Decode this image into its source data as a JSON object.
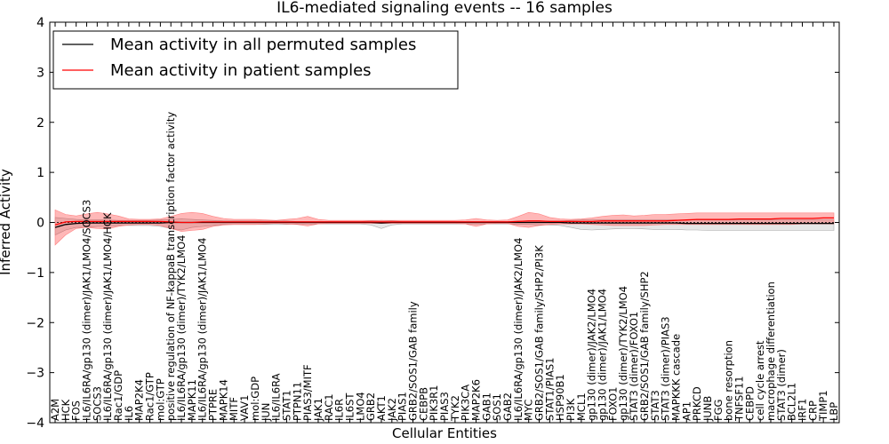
{
  "chart_data": {
    "type": "line",
    "title": "IL6-mediated signaling events -- 16 samples",
    "xlabel": "Cellular Entities",
    "ylabel": "Inferred Activity",
    "ylim": [
      -4,
      4
    ],
    "yticks": [
      -4,
      -3,
      -2,
      -1,
      0,
      1,
      2,
      3,
      4
    ],
    "grid": false,
    "legend_position": "top-left",
    "categories": [
      "A2M",
      "HCK",
      "FOS",
      "IL6/IL6RA/gp130 (dimer)/JAK1/LMO4/SOCS3",
      "SOCS3",
      "IL6/IL6RA/gp130 (dimer)/JAK1/LMO4/HCK",
      "Rac1/GDP",
      "IL6",
      "MAP2K4",
      "Rac1/GTP",
      "mol:GTP",
      "positive regulation of NF-kappaB transcription factor activity",
      "IL6/IL6RA/gp130 (dimer)/TYK2/LMO4",
      "MAPK11",
      "IL6/IL6RA/gp130 (dimer)/JAK1/LMO4",
      "PTPRE",
      "MAPK14",
      "MITF",
      "VAV1",
      "mol:GDP",
      "JUN",
      "IL6/IL6RA",
      "STAT1",
      "PTPN11",
      "PIAS3/MITF",
      "JAK1",
      "RAC1",
      "IL6R",
      "IL6ST",
      "LMO4",
      "GRB2",
      "AKT1",
      "JAK2",
      "PIAS1",
      "GRB2/SOS1/GAB family",
      "CEBPB",
      "PIK3R1",
      "PIAS3",
      "TYK2",
      "PIK3CA",
      "MAP2K6",
      "GAB1",
      "SOS1",
      "GAB2",
      "IL6/IL6RA/gp130 (dimer)/JAK2/LMO4",
      "MYC",
      "GRB2/SOS1/GAB family/SHP2/PI3K",
      "STAT1/PIAS1",
      "HSP90B1",
      "PI3K",
      "MCL1",
      "gp130 (dimer)/JAK2/LMO4",
      "gp130 (dimer)/JAK1/LMO4",
      "FOXO1",
      "gp130 (dimer)/TYK2/LMO4",
      "STAT3 (dimer)/FOXO1",
      "GRB2/SOS1/GAB family/SHP2",
      "STAT3",
      "STAT3 (dimer)/PIAS3",
      "MAPKKK cascade",
      "AP1",
      "PRKCD",
      "JUNB",
      "FGG",
      "bone resorption",
      "TNFSF11",
      "CEBPD",
      "cell cycle arrest",
      "macrophage differentiation",
      "STAT3 (dimer)",
      "BCL2L1",
      "IRF1",
      "CRP",
      "TIMP1",
      "LBP"
    ],
    "series": [
      {
        "name": "Mean activity in all permuted samples",
        "color": "#000000",
        "values": [
          -0.1,
          -0.04,
          -0.02,
          -0.01,
          -0.01,
          -0.01,
          -0.01,
          -0.01,
          -0.01,
          -0.01,
          -0.01,
          0,
          0,
          0,
          0,
          0,
          0,
          0,
          0,
          0,
          0,
          0,
          0,
          0,
          0,
          0,
          0,
          0,
          0,
          0,
          0,
          -0.01,
          0,
          0,
          0,
          0,
          0,
          0,
          0,
          0,
          0,
          0,
          0,
          0,
          0,
          0,
          0,
          0,
          0,
          -0.01,
          -0.01,
          -0.01,
          -0.01,
          -0.01,
          -0.01,
          -0.01,
          -0.01,
          -0.01,
          -0.01,
          -0.01,
          -0.02,
          -0.02,
          -0.02,
          -0.02,
          -0.02,
          -0.02,
          -0.02,
          -0.02,
          -0.02,
          -0.02,
          -0.02,
          -0.02,
          -0.02,
          -0.02,
          -0.02
        ],
        "band": {
          "lower": [
            -0.25,
            -0.15,
            -0.1,
            -0.1,
            -0.08,
            -0.08,
            -0.06,
            -0.06,
            -0.06,
            -0.06,
            -0.08,
            -0.12,
            -0.15,
            -0.1,
            -0.08,
            -0.06,
            -0.04,
            -0.04,
            -0.04,
            -0.04,
            -0.04,
            -0.04,
            -0.04,
            -0.03,
            -0.03,
            -0.03,
            -0.03,
            -0.03,
            -0.03,
            -0.03,
            -0.05,
            -0.12,
            -0.05,
            -0.03,
            -0.03,
            -0.03,
            -0.03,
            -0.03,
            -0.03,
            -0.03,
            -0.03,
            -0.03,
            -0.03,
            -0.03,
            -0.04,
            -0.04,
            -0.05,
            -0.05,
            -0.06,
            -0.1,
            -0.14,
            -0.15,
            -0.14,
            -0.13,
            -0.12,
            -0.12,
            -0.13,
            -0.14,
            -0.14,
            -0.14,
            -0.15,
            -0.15,
            -0.16,
            -0.16,
            -0.16,
            -0.16,
            -0.16,
            -0.16,
            -0.16,
            -0.16,
            -0.16,
            -0.16,
            -0.16,
            -0.16,
            -0.16
          ],
          "upper": [
            0.1,
            0.08,
            0.06,
            0.05,
            0.05,
            0.05,
            0.04,
            0.04,
            0.04,
            0.04,
            0.05,
            0.06,
            0.07,
            0.06,
            0.05,
            0.04,
            0.03,
            0.03,
            0.03,
            0.03,
            0.03,
            0.03,
            0.03,
            0.02,
            0.02,
            0.02,
            0.02,
            0.02,
            0.02,
            0.02,
            0.03,
            0.04,
            0.03,
            0.02,
            0.02,
            0.02,
            0.02,
            0.02,
            0.02,
            0.02,
            0.02,
            0.02,
            0.02,
            0.02,
            0.03,
            0.03,
            0.03,
            0.03,
            0.03,
            0.04,
            0.05,
            0.05,
            0.05,
            0.05,
            0.05,
            0.05,
            0.05,
            0.05,
            0.05,
            0.05,
            0.05,
            0.05,
            0.05,
            0.05,
            0.05,
            0.05,
            0.05,
            0.05,
            0.05,
            0.05,
            0.05,
            0.05,
            0.05,
            0.05,
            0.05
          ]
        }
      },
      {
        "name": "Mean activity in patient samples",
        "color": "#ff0000",
        "values": [
          -0.05,
          0.01,
          0.02,
          0.02,
          0.02,
          0.02,
          0.02,
          0.02,
          0.02,
          0.02,
          0.02,
          0.01,
          0,
          0,
          0.01,
          0.01,
          0.01,
          0.01,
          0.01,
          0.01,
          0.01,
          0.01,
          0.01,
          0.01,
          0.01,
          0.01,
          0.01,
          0.01,
          0.01,
          0.01,
          0.01,
          0.01,
          0.01,
          0.01,
          0.01,
          0.01,
          0.01,
          0.01,
          0.01,
          0.01,
          0.01,
          0.01,
          0.01,
          0.01,
          0.02,
          0.03,
          0.03,
          0.02,
          0.02,
          0.02,
          0.02,
          0.02,
          0.03,
          0.03,
          0.03,
          0.03,
          0.03,
          0.03,
          0.03,
          0.04,
          0.05,
          0.06,
          0.06,
          0.06,
          0.06,
          0.07,
          0.07,
          0.07,
          0.07,
          0.08,
          0.08,
          0.08,
          0.08,
          0.09,
          0.09
        ],
        "band": {
          "lower": [
            -0.45,
            -0.25,
            -0.12,
            -0.1,
            -0.12,
            -0.13,
            -0.08,
            -0.05,
            -0.04,
            -0.04,
            -0.06,
            -0.12,
            -0.18,
            -0.16,
            -0.14,
            -0.08,
            -0.05,
            -0.04,
            -0.04,
            -0.04,
            -0.03,
            -0.02,
            -0.03,
            -0.04,
            -0.07,
            -0.03,
            -0.02,
            -0.02,
            -0.02,
            -0.02,
            -0.02,
            -0.02,
            -0.02,
            -0.02,
            -0.02,
            -0.02,
            -0.02,
            -0.02,
            -0.02,
            -0.03,
            -0.08,
            -0.03,
            -0.02,
            -0.02,
            -0.08,
            -0.1,
            -0.06,
            -0.04,
            -0.03,
            -0.03,
            -0.03,
            -0.04,
            -0.05,
            -0.06,
            -0.06,
            -0.06,
            -0.06,
            -0.05,
            -0.04,
            -0.04,
            -0.04,
            -0.04,
            -0.04,
            -0.04,
            -0.04,
            -0.04,
            -0.04,
            -0.04,
            -0.04,
            -0.04,
            -0.04,
            -0.03,
            -0.03,
            -0.03,
            -0.03
          ],
          "upper": [
            0.25,
            0.16,
            0.13,
            0.17,
            0.2,
            0.17,
            0.13,
            0.07,
            0.06,
            0.06,
            0.07,
            0.12,
            0.18,
            0.2,
            0.18,
            0.12,
            0.08,
            0.06,
            0.06,
            0.06,
            0.05,
            0.04,
            0.06,
            0.08,
            0.12,
            0.06,
            0.04,
            0.04,
            0.04,
            0.04,
            0.04,
            0.04,
            0.04,
            0.04,
            0.04,
            0.04,
            0.04,
            0.04,
            0.04,
            0.05,
            0.08,
            0.05,
            0.04,
            0.05,
            0.12,
            0.2,
            0.17,
            0.1,
            0.07,
            0.06,
            0.07,
            0.09,
            0.12,
            0.14,
            0.15,
            0.13,
            0.14,
            0.16,
            0.16,
            0.17,
            0.18,
            0.19,
            0.19,
            0.19,
            0.19,
            0.19,
            0.19,
            0.19,
            0.19,
            0.19,
            0.19,
            0.19,
            0.19,
            0.19,
            0.19
          ]
        }
      }
    ]
  }
}
